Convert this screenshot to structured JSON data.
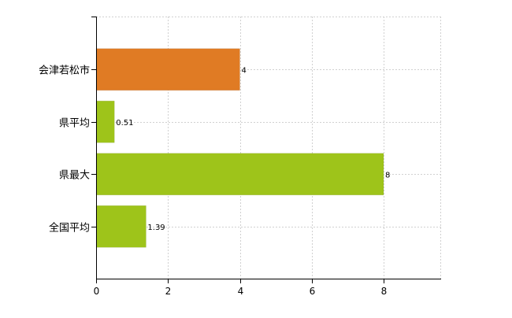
{
  "chart_data": {
    "type": "bar",
    "orientation": "horizontal",
    "categories": [
      "会津若松市",
      "県平均",
      "県最大",
      "全国平均"
    ],
    "values": [
      4,
      0.51,
      8,
      1.39
    ],
    "value_labels": [
      "4",
      "0.51",
      "8",
      "1.39"
    ],
    "bar_colors": [
      "#e07b24",
      "#9ec41a",
      "#9ec41a",
      "#9ec41a"
    ],
    "xlim": [
      0,
      9.6
    ],
    "xticks": [
      0,
      2,
      4,
      6,
      8
    ],
    "xtick_labels": [
      "0",
      "2",
      "4",
      "6",
      "8"
    ],
    "grid": true,
    "title": "",
    "xlabel": "",
    "ylabel": ""
  }
}
